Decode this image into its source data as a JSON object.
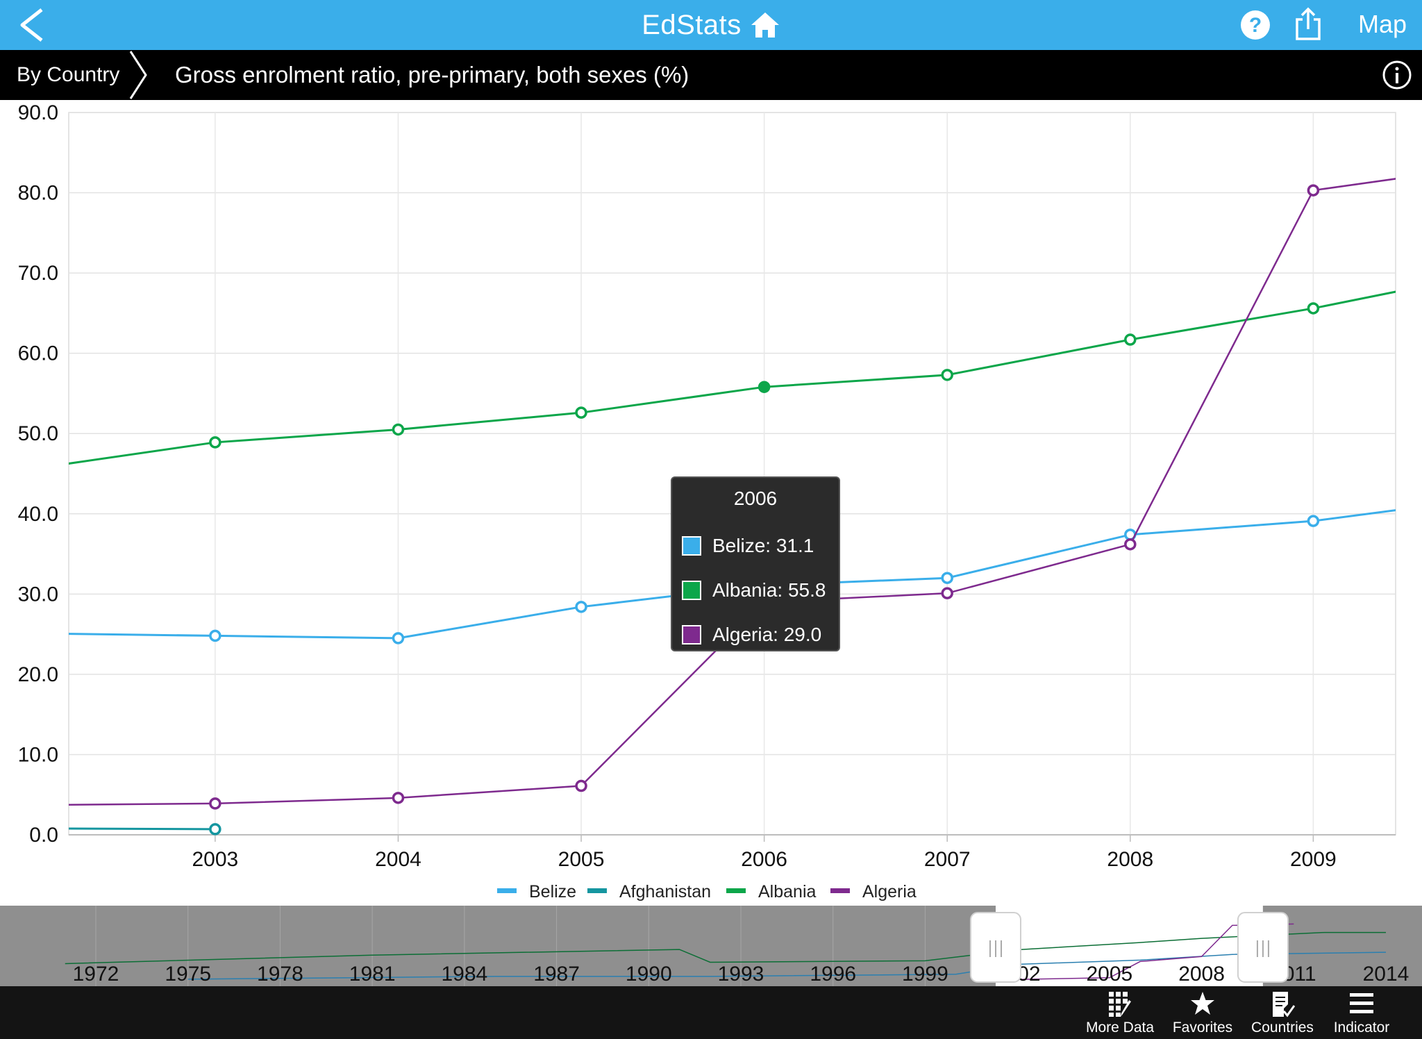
{
  "header": {
    "title": "EdStats",
    "map_label": "Map"
  },
  "subheader": {
    "breadcrumb": "By Country",
    "indicator_title": "Gross enrolment ratio, pre-primary, both sexes (%)"
  },
  "tooltip": {
    "year": "2006",
    "rows": [
      {
        "label": "Belize: 31.1",
        "color": "#3aaeea"
      },
      {
        "label": "Albania: 55.8",
        "color": "#0ca64a"
      },
      {
        "label": "Algeria: 29.0",
        "color": "#7e2a8e"
      }
    ]
  },
  "navigator": {
    "labels": [
      "1972",
      "1975",
      "1978",
      "1981",
      "1984",
      "1987",
      "1990",
      "1993",
      "1996",
      "1999",
      "2002",
      "2005",
      "2008",
      "2011",
      "2014"
    ],
    "selected_range": [
      2002.2,
      2009.5
    ]
  },
  "tabs": [
    {
      "label": "More Data"
    },
    {
      "label": "Favorites"
    },
    {
      "label": "Countries"
    },
    {
      "label": "Indicator"
    }
  ],
  "chart_data": {
    "type": "line",
    "x_axis_labels": [
      "2003",
      "2004",
      "2005",
      "2006",
      "2007",
      "2008",
      "2009"
    ],
    "y_axis_labels": [
      "0.0",
      "10.0",
      "20.0",
      "30.0",
      "40.0",
      "50.0",
      "60.0",
      "70.0",
      "80.0",
      "90.0"
    ],
    "ylim": [
      0,
      90
    ],
    "xlim": [
      2002.2,
      2009.45
    ],
    "grid": true,
    "legend_position": "bottom",
    "series": [
      {
        "name": "Belize",
        "color": "#3aaeea",
        "points": [
          [
            2002,
            25.1
          ],
          [
            2003,
            24.8
          ],
          [
            2004,
            24.5
          ],
          [
            2005,
            28.4
          ],
          [
            2006,
            31.1
          ],
          [
            2007,
            32.0
          ],
          [
            2008,
            37.4
          ],
          [
            2009,
            39.1
          ],
          [
            2010,
            42.1
          ]
        ]
      },
      {
        "name": "Afghanistan",
        "color": "#1596a0",
        "points": [
          [
            2002,
            0.8
          ],
          [
            2003,
            0.7
          ]
        ]
      },
      {
        "name": "Albania",
        "color": "#0ca64a",
        "points": [
          [
            2002,
            45.6
          ],
          [
            2003,
            48.9
          ],
          [
            2004,
            50.5
          ],
          [
            2005,
            52.6
          ],
          [
            2006,
            55.8
          ],
          [
            2007,
            57.3
          ],
          [
            2008,
            61.7
          ],
          [
            2009,
            65.6
          ],
          [
            2010,
            70.2
          ]
        ]
      },
      {
        "name": "Algeria",
        "color": "#7e2a8e",
        "points": [
          [
            2002,
            3.7
          ],
          [
            2003,
            3.9
          ],
          [
            2004,
            4.6
          ],
          [
            2005,
            6.1
          ],
          [
            2006,
            29.0
          ],
          [
            2007,
            30.1
          ],
          [
            2008,
            36.2
          ],
          [
            2009,
            80.3
          ],
          [
            2010,
            83.5
          ]
        ]
      }
    ],
    "highlight_x": 2006
  }
}
